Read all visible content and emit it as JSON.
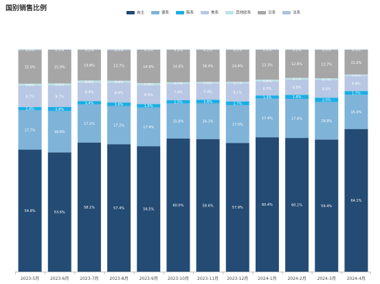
{
  "chart_data": {
    "type": "bar",
    "stacked": true,
    "percent": true,
    "title": "国别销售比例",
    "categories": [
      "2023-5月",
      "2023-6月",
      "2023-7月",
      "2023-8月",
      "2023-9月",
      "2023-10月",
      "2023-11月",
      "2023-12月",
      "2024-1月",
      "2024-2月",
      "2024-3月",
      "2024-4月"
    ],
    "series": [
      {
        "name": "自主",
        "color": "#244b73",
        "values": [
          54.8,
          53.6,
          58.1,
          57.4,
          56.5,
          60.0,
          59.6,
          57.9,
          60.4,
          60.1,
          59.4,
          64.1
        ]
      },
      {
        "name": "德系",
        "color": "#7fb3d8",
        "values": [
          17.7,
          18.6,
          17.2,
          17.2,
          17.4,
          15.8,
          16.1,
          17.0,
          17.4,
          17.6,
          16.9,
          15.4
        ]
      },
      {
        "name": "韩系",
        "color": "#1aaee5",
        "values": [
          1.4,
          1.8,
          1.4,
          1.6,
          1.6,
          1.5,
          1.6,
          1.7,
          1.4,
          1.8,
          2.0,
          1.7
        ]
      },
      {
        "name": "美系",
        "color": "#b8c7e4",
        "values": [
          9.7,
          9.7,
          8.4,
          8.9,
          8.5,
          7.4,
          7.4,
          8.1,
          6.3,
          6.9,
          8.0,
          6.8
        ]
      },
      {
        "name": "其他欧系",
        "color": "#bde3e8",
        "values": [
          0.8,
          0.9,
          0.9,
          0.9,
          0.9,
          0.7,
          0.6,
          0.7,
          0.8,
          0.7,
          0.7,
          0.6
        ]
      },
      {
        "name": "日系",
        "color": "#a6a6a6",
        "values": [
          15.0,
          15.0,
          13.8,
          13.7,
          14.9,
          14.6,
          14.4,
          14.4,
          13.3,
          12.6,
          12.7,
          11.0
        ]
      },
      {
        "name": "法系",
        "color": "#abc2e0",
        "values": [
          0.4,
          0.3,
          0.2,
          0.4,
          0.3,
          0.2,
          0.2,
          0.2,
          0.3,
          0.2,
          0.3,
          0.3
        ]
      }
    ]
  }
}
